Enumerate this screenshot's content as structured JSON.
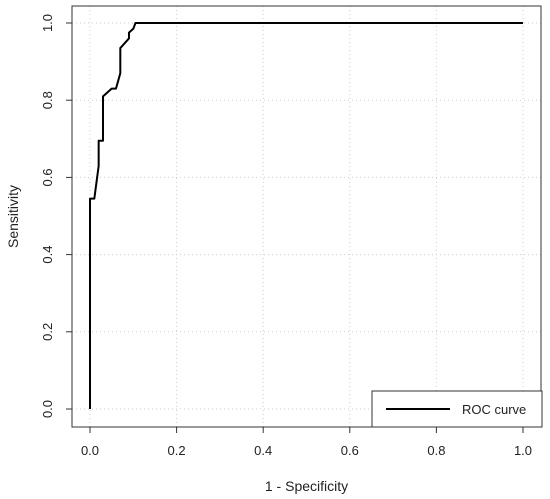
{
  "chart_data": {
    "type": "line",
    "title": "",
    "xlabel": "1 - Specificity",
    "ylabel": "Sensitivity",
    "xlim": [
      0,
      1
    ],
    "ylim": [
      0,
      1
    ],
    "x_ticks": [
      "0.0",
      "0.2",
      "0.4",
      "0.6",
      "0.8",
      "1.0"
    ],
    "y_ticks": [
      "0.0",
      "0.2",
      "0.4",
      "0.6",
      "0.8",
      "1.0"
    ],
    "grid": true,
    "grid_style": "dotted",
    "legend_position": "bottom-right",
    "series": [
      {
        "name": "ROC curve",
        "color": "#000000",
        "points": [
          [
            0.0,
            0.0
          ],
          [
            0.0,
            0.545
          ],
          [
            0.01,
            0.545
          ],
          [
            0.02,
            0.63
          ],
          [
            0.02,
            0.695
          ],
          [
            0.03,
            0.695
          ],
          [
            0.03,
            0.81
          ],
          [
            0.05,
            0.83
          ],
          [
            0.06,
            0.83
          ],
          [
            0.07,
            0.87
          ],
          [
            0.07,
            0.935
          ],
          [
            0.09,
            0.96
          ],
          [
            0.09,
            0.975
          ],
          [
            0.1,
            0.985
          ],
          [
            0.105,
            1.0
          ],
          [
            1.0,
            1.0
          ]
        ]
      }
    ]
  }
}
